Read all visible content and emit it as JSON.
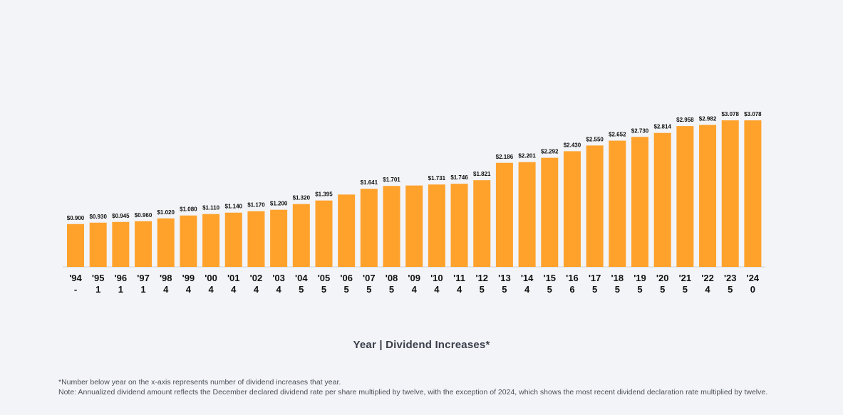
{
  "chart_data": {
    "type": "bar",
    "categories": [
      "'94",
      "'95",
      "'96",
      "'97",
      "'98",
      "'99",
      "'00",
      "'01",
      "'02",
      "'03",
      "'04",
      "'05",
      "'06",
      "'07",
      "'08",
      "'09",
      "'10",
      "'11",
      "'12",
      "'13",
      "'14",
      "'15",
      "'16",
      "'17",
      "'18",
      "'19",
      "'20",
      "'21",
      "'22",
      "'23",
      "'24"
    ],
    "increases": [
      "-",
      "1",
      "1",
      "1",
      "4",
      "4",
      "4",
      "4",
      "4",
      "4",
      "5",
      "5",
      "5",
      "5",
      "5",
      "4",
      "4",
      "4",
      "5",
      "5",
      "4",
      "5",
      "6",
      "5",
      "5",
      "5",
      "5",
      "5",
      "4",
      "5",
      "0"
    ],
    "values": [
      0.9,
      0.93,
      0.945,
      0.96,
      1.02,
      1.08,
      1.11,
      1.14,
      1.17,
      1.2,
      1.32,
      1.395,
      1.52,
      1.641,
      1.701,
      1.71,
      1.731,
      1.746,
      1.821,
      2.186,
      2.201,
      2.292,
      2.43,
      2.55,
      2.652,
      2.73,
      2.814,
      2.958,
      2.982,
      3.078,
      3.078
    ],
    "data_labels": [
      "$0.900",
      "$0.930",
      "$0.945",
      "$0.960",
      "$1.020",
      "$1.080",
      "$1.110",
      "$1.140",
      "$1.170",
      "$1.200",
      "$1.320",
      "$1.395",
      "",
      "$1.641",
      "$1.701",
      "",
      "$1.731",
      "$1.746",
      "$1.821",
      "$2.186",
      "$2.201",
      "$2.292",
      "$2.430",
      "$2.550",
      "$2.652",
      "$2.730",
      "$2.814",
      "$2.958",
      "$2.982",
      "$3.078",
      "$3.078"
    ],
    "xlabel": "Year | Dividend Increases*",
    "ylabel": "",
    "ylim": [
      0,
      4.2
    ],
    "grid": false,
    "bar_color": "#ffa22c"
  },
  "footnotes": [
    "*Number below year on the x-axis represents number of dividend increases that year.",
    "Note: Annualized dividend amount reflects the December declared dividend rate per share multiplied by twelve, with the exception of 2024, which shows the most recent dividend declaration rate multiplied by twelve."
  ]
}
